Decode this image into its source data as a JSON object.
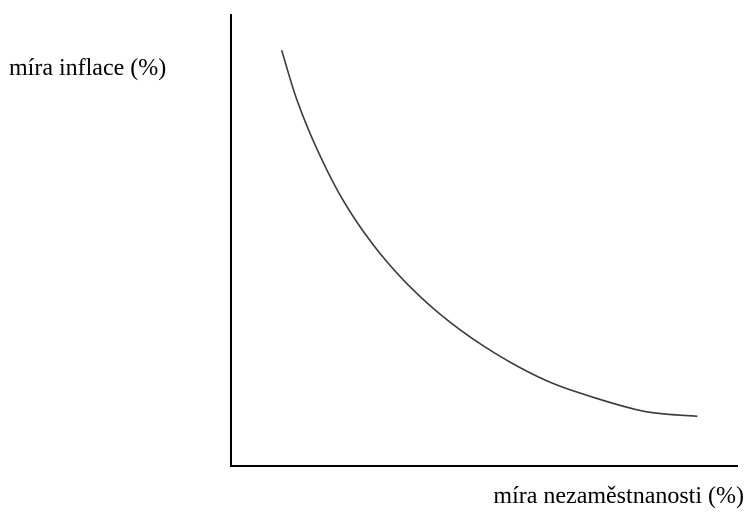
{
  "chart_data": {
    "type": "line",
    "xlabel": "míra nezaměstnanosti (%)",
    "ylabel": "míra inflace (%)",
    "xlim": [
      0,
      100
    ],
    "ylim": [
      0,
      100
    ],
    "grid": false,
    "series": [
      {
        "values": [
          [
            10,
            92
          ],
          [
            13,
            81
          ],
          [
            17,
            70
          ],
          [
            22,
            59
          ],
          [
            28,
            49
          ],
          [
            35,
            40
          ],
          [
            43,
            32
          ],
          [
            52,
            25
          ],
          [
            62,
            19
          ],
          [
            72,
            15
          ],
          [
            82,
            12
          ],
          [
            92,
            11
          ]
        ]
      }
    ],
    "colors": {
      "axis": "#000000",
      "curve": "#3a3a3a"
    }
  }
}
